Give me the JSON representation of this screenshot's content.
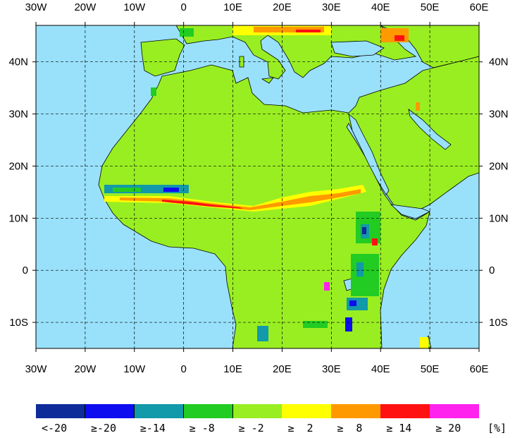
{
  "map": {
    "lon_ticks": [
      "30W",
      "20W",
      "10W",
      "0",
      "10E",
      "20E",
      "30E",
      "40E",
      "50E",
      "60E"
    ],
    "lat_ticks": [
      "40N",
      "30N",
      "20N",
      "10N",
      "0",
      "10S"
    ],
    "lon_values": [
      -30,
      -20,
      -10,
      0,
      10,
      20,
      30,
      40,
      50,
      60
    ],
    "lat_values": [
      40,
      30,
      20,
      10,
      0,
      -10
    ],
    "lon_range": [
      -30,
      60
    ],
    "lat_range": [
      -15,
      47
    ],
    "grid": true,
    "colors": {
      "ocean": "#99e1fa",
      "land_base": "#99ee22",
      "border": "#000000"
    }
  },
  "legend": {
    "unit": "[%]",
    "bins": [
      {
        "label": "<-20",
        "color": "#0d2c99"
      },
      {
        "label": "≥-20",
        "color": "#0d0df0"
      },
      {
        "label": "≥-14",
        "color": "#1299aa"
      },
      {
        "label": "≥ -8",
        "color": "#22cc22"
      },
      {
        "label": "≥ -2",
        "color": "#99ee22"
      },
      {
        "label": "≥  2",
        "color": "#ffff00"
      },
      {
        "label": "≥  8",
        "color": "#ff9900"
      },
      {
        "label": "≥ 14",
        "color": "#ff1111"
      },
      {
        "label": "≥ 20",
        "color": "#ff22ee"
      }
    ]
  }
}
